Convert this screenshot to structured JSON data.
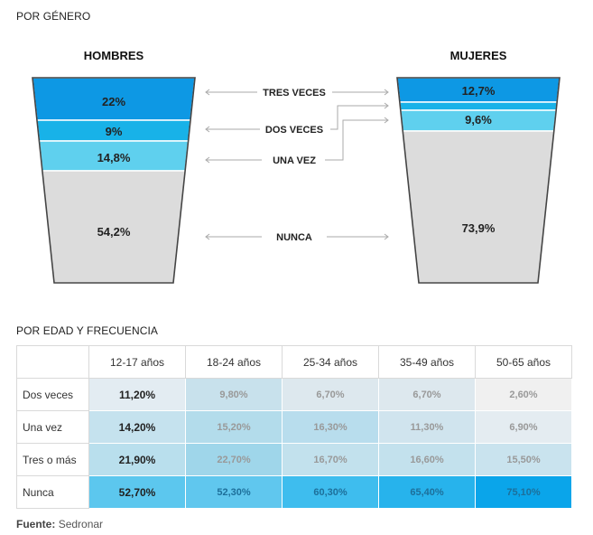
{
  "section_gender_title": "POR GÉNERO",
  "section_age_title": "POR EDAD Y FRECUENCIA",
  "source_label": "Fuente:",
  "source_value": "Sedronar",
  "chart_data": [
    {
      "type": "bar",
      "title": "POR GÉNERO",
      "categories": [
        "TRES VECES",
        "DOS VECES",
        "UNA VEZ",
        "NUNCA"
      ],
      "series": [
        {
          "name": "HOMBRES",
          "values": [
            22,
            9,
            14.8,
            54.2
          ],
          "labels": [
            "22%",
            "9%",
            "14,8%",
            "54,2%"
          ]
        },
        {
          "name": "MUJERES",
          "values": [
            12.7,
            null,
            9.6,
            73.9
          ],
          "labels": [
            "12,7%",
            "",
            "9,6%",
            "73,9%"
          ]
        }
      ],
      "colors": {
        "TRES VECES": "#0d98e4",
        "DOS VECES": "#18b2e8",
        "UNA VEZ": "#5fd0ee",
        "NUNCA": "#dcdcdc"
      }
    },
    {
      "type": "table",
      "title": "POR EDAD Y FRECUENCIA",
      "columns": [
        "12-17 años",
        "18-24 años",
        "25-34 años",
        "35-49 años",
        "50-65 años"
      ],
      "rows": [
        {
          "label": "Dos veces",
          "values": [
            "11,20%",
            "9,80%",
            "6,70%",
            "6,70%",
            "2,60%"
          ],
          "colors": [
            "#e3ecf2",
            "#c8e1ec",
            "#dde8ee",
            "#dde8ee",
            "#f0f0f0"
          ]
        },
        {
          "label": "Una vez",
          "values": [
            "14,20%",
            "15,20%",
            "16,30%",
            "11,30%",
            "6,90%"
          ],
          "colors": [
            "#c5e2ee",
            "#b3dceb",
            "#b8dded",
            "#d0e4ee",
            "#e4ecf1"
          ]
        },
        {
          "label": "Tres o más",
          "values": [
            "21,90%",
            "22,70%",
            "16,70%",
            "16,60%",
            "15,50%"
          ],
          "colors": [
            "#b9dfed",
            "#9fd6ea",
            "#c2e1ed",
            "#c3e1ed",
            "#c9e3ee"
          ]
        },
        {
          "label": "Nunca",
          "values": [
            "52,70%",
            "52,30%",
            "60,30%",
            "65,40%",
            "75,10%"
          ],
          "colors": [
            "#5cc7ee",
            "#60c7ee",
            "#3ebdee",
            "#27b3ec",
            "#0aa5ea"
          ]
        }
      ]
    }
  ]
}
